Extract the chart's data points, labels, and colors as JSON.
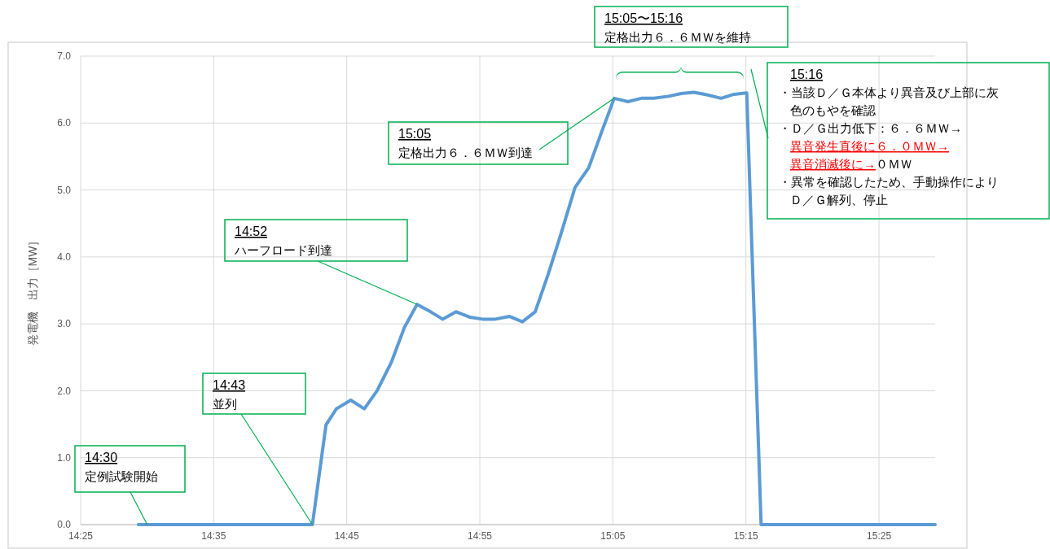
{
  "chart_data": {
    "type": "line",
    "ylabel": "発電機　出力［MW］",
    "x": [
      14.489,
      14.707,
      14.724,
      14.737,
      14.755,
      14.772,
      14.788,
      14.806,
      14.822,
      14.838,
      14.855,
      14.87,
      14.887,
      14.904,
      14.92,
      14.936,
      14.954,
      14.97,
      14.986,
      15.002,
      15.019,
      15.036,
      15.053,
      15.069,
      15.085,
      15.102,
      15.119,
      15.135,
      15.153,
      15.169,
      15.185,
      15.202,
      15.219,
      15.235,
      15.251,
      15.269,
      15.487
    ],
    "series": [
      {
        "color": "#5b9bd5",
        "values": [
          0,
          0,
          1.49,
          1.73,
          1.86,
          1.73,
          2.0,
          2.43,
          2.94,
          3.29,
          3.18,
          3.07,
          3.18,
          3.1,
          3.07,
          3.07,
          3.11,
          3.03,
          3.18,
          3.73,
          4.37,
          5.04,
          5.33,
          5.86,
          6.37,
          6.32,
          6.37,
          6.37,
          6.4,
          6.44,
          6.46,
          6.42,
          6.37,
          6.43,
          6.45,
          0,
          0
        ]
      }
    ],
    "xlim": [
      14.41667,
      15.487
    ],
    "xticks": [
      {
        "value": 14.41667,
        "label": "14:25"
      },
      {
        "value": 14.58333,
        "label": "14:35"
      },
      {
        "value": 14.75,
        "label": "14:45"
      },
      {
        "value": 14.91667,
        "label": "14:55"
      },
      {
        "value": 15.08333,
        "label": "15:05"
      },
      {
        "value": 15.25,
        "label": "15:15"
      },
      {
        "value": 15.41667,
        "label": "15:25"
      }
    ],
    "ylim": [
      0,
      7
    ],
    "yticks": [
      {
        "value": 0,
        "label": "0.0"
      },
      {
        "value": 1,
        "label": "1.0"
      },
      {
        "value": 2,
        "label": "2.0"
      },
      {
        "value": 3,
        "label": "3.0"
      },
      {
        "value": 4,
        "label": "4.0"
      },
      {
        "value": 5,
        "label": "5.0"
      },
      {
        "value": 6,
        "label": "6.0"
      },
      {
        "value": 7,
        "label": "7.0"
      }
    ],
    "grid": true,
    "marker": "none",
    "line_style": "solid",
    "annotations": [
      "14:30",
      {
        "text": "定例試験開始",
        "x": 14.5,
        "y": 0
      },
      "14:43",
      {
        "text": "並列",
        "x": 14.707,
        "y": 0
      },
      "14:52",
      {
        "text": "ハーフロード到達",
        "x": 14.838,
        "y": 3.29
      },
      "15:05",
      {
        "text": "定格出力６．６ＭＷ到達",
        "x": 15.085,
        "y": 6.37
      },
      "15:05〜15:16",
      "定格出力６．６ＭＷを維持",
      "15:16",
      "・当該Ｄ／Ｇ本体より異音及び上部に灰色のもやを確認",
      "・Ｄ／Ｇ出力低下：６．６ＭＷ→異音発生直後に６．０ＭＷ→異音消滅後に→０ＭＷ",
      "・異常を確認したため、手動操作によりＤ／Ｇ解列、停止"
    ]
  }
}
